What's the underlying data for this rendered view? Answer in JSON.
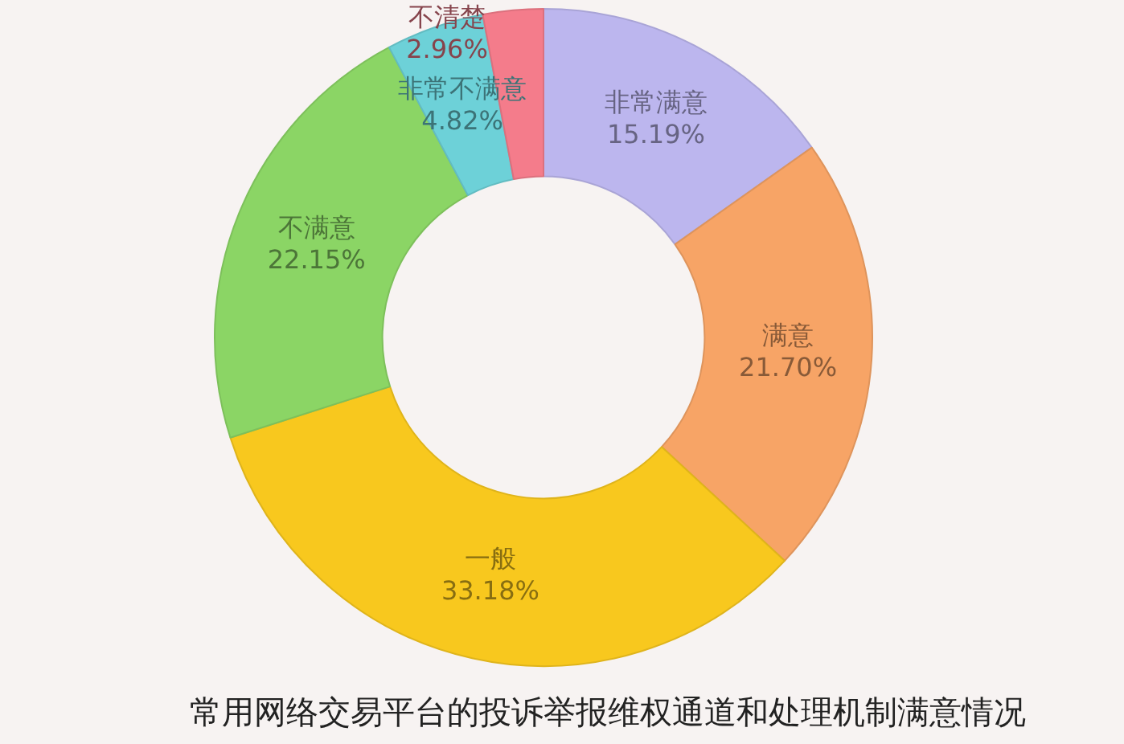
{
  "chart_data": {
    "type": "donut",
    "title": "常用网络交易平台的投诉举报维权通道和处理机制满意情况",
    "categories": [
      "非常满意",
      "满意",
      "一般",
      "不满意",
      "非常不满意",
      "不清楚"
    ],
    "values": [
      15.19,
      21.7,
      33.18,
      22.15,
      4.82,
      2.96
    ],
    "value_labels": [
      "15.19%",
      "21.70%",
      "33.18%",
      "22.15%",
      "4.82%",
      "2.96%"
    ],
    "colors": [
      "#bcb6ee",
      "#f7a466",
      "#f8c81e",
      "#8bd565",
      "#6dd1d8",
      "#f47c8b"
    ]
  }
}
